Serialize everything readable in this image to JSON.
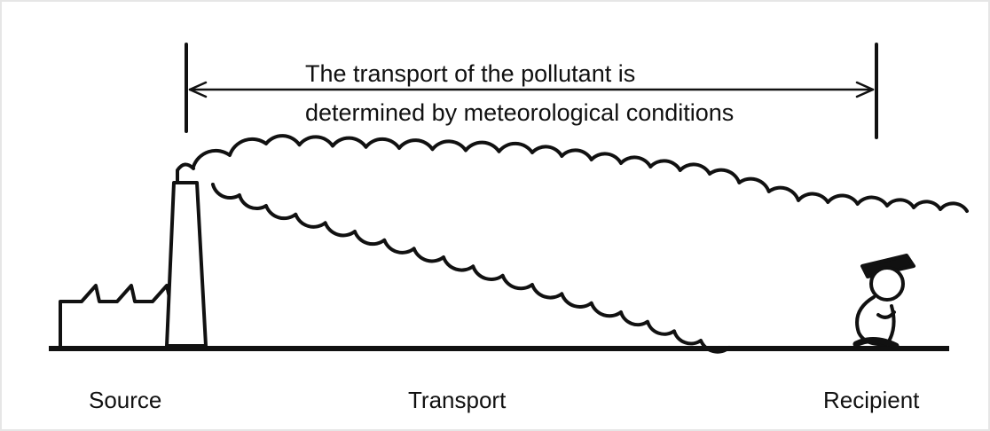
{
  "annotation": {
    "lines": [
      "The transport of the pollutant is",
      "determined by meteorological conditions"
    ]
  },
  "labels": [
    "Source",
    "Transport",
    "Recipient"
  ]
}
